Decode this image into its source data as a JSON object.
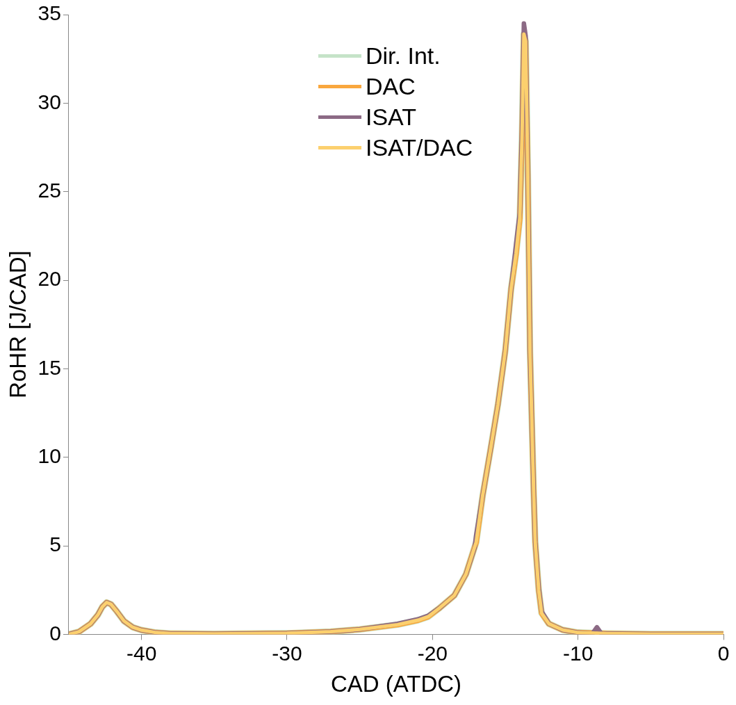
{
  "chart_data": {
    "type": "line",
    "xlabel": "CAD (ATDC)",
    "ylabel": "RoHR [J/CAD]",
    "xlim": [
      -45,
      0
    ],
    "xticks": [
      -40,
      -30,
      -20,
      -10,
      0
    ],
    "ylim": [
      0,
      35
    ],
    "yticks": [
      0,
      5,
      10,
      15,
      20,
      25,
      30,
      35
    ],
    "grid": false,
    "legend": "top",
    "marker": "none",
    "line_style": "solid",
    "series": [
      {
        "name": "Dir. Int.",
        "color": "#c5e3c8",
        "x": [
          -45,
          -44.3,
          -43.5,
          -43,
          -42.7,
          -42.4,
          -42.1,
          -41.7,
          -41.2,
          -40.6,
          -40,
          -39,
          -38,
          -35,
          -30,
          -27,
          -25,
          -22.4,
          -21,
          -20.3,
          -19.5,
          -18.5,
          -17.7,
          -17,
          -16.55,
          -16,
          -15.5,
          -15,
          -14.6,
          -14.26,
          -14,
          -13.85,
          -13.72,
          -13.6,
          -13.45,
          -13.3,
          -13.04,
          -12.94,
          -12.7,
          -12.5,
          -12,
          -11.05,
          -10,
          -8,
          -5,
          0
        ],
        "values": [
          0,
          0.15,
          0.6,
          1.1,
          1.55,
          1.8,
          1.7,
          1.3,
          0.75,
          0.4,
          0.24,
          0.1,
          0.05,
          0.03,
          0.06,
          0.15,
          0.28,
          0.55,
          0.8,
          1,
          1.5,
          2.2,
          3.4,
          5.2,
          7.85,
          10.5,
          13,
          16,
          19.5,
          21.5,
          23.5,
          28,
          33.9,
          33.5,
          26,
          16,
          7.85,
          5.2,
          2.5,
          1.2,
          0.6,
          0.25,
          0.1,
          0.05,
          0.02,
          0.02
        ]
      },
      {
        "name": "DAC",
        "color": "#f9a73e",
        "x": [
          -45,
          -44.3,
          -43.5,
          -43,
          -42.7,
          -42.4,
          -42.1,
          -41.7,
          -41.2,
          -40.6,
          -40,
          -39,
          -38,
          -35,
          -30,
          -27,
          -25,
          -22.4,
          -21,
          -20.3,
          -19.5,
          -18.5,
          -17.7,
          -17,
          -16.55,
          -16,
          -15.5,
          -15,
          -14.6,
          -14.26,
          -14,
          -13.85,
          -13.72,
          -13.6,
          -13.45,
          -13.3,
          -13.04,
          -12.94,
          -12.7,
          -12.5,
          -12,
          -11.05,
          -10,
          -8,
          -5,
          0
        ],
        "values": [
          0,
          0.15,
          0.6,
          1.1,
          1.55,
          1.8,
          1.7,
          1.3,
          0.75,
          0.4,
          0.24,
          0.1,
          0.05,
          0.03,
          0.06,
          0.15,
          0.28,
          0.55,
          0.8,
          1,
          1.5,
          2.2,
          3.4,
          5.2,
          7.85,
          10.5,
          13,
          16,
          19.5,
          21.5,
          23.5,
          28,
          33.9,
          33.5,
          26,
          16,
          7.85,
          5.2,
          2.5,
          1.2,
          0.6,
          0.25,
          0.1,
          0.05,
          0.02,
          0.02
        ]
      },
      {
        "name": "ISAT",
        "color": "#8c6a85",
        "x": [
          -45,
          -44.3,
          -43.5,
          -43,
          -42.7,
          -42.4,
          -42.1,
          -41.7,
          -41.2,
          -40.6,
          -40,
          -39,
          -38,
          -35,
          -30,
          -27,
          -25,
          -22.4,
          -21,
          -20.3,
          -19.5,
          -18.5,
          -17.7,
          -17.1,
          -17,
          -16.55,
          -16,
          -15.5,
          -15,
          -14.6,
          -14.26,
          -14,
          -13.85,
          -13.72,
          -13.6,
          -13.45,
          -13.3,
          -13.04,
          -12.94,
          -12.7,
          -12.5,
          -12,
          -11.05,
          -10,
          -9,
          -8.7,
          -8.4,
          -8,
          -5,
          0
        ],
        "values": [
          0,
          0.15,
          0.6,
          1.1,
          1.55,
          1.8,
          1.7,
          1.3,
          0.75,
          0.4,
          0.24,
          0.1,
          0.05,
          0.03,
          0.06,
          0.15,
          0.28,
          0.6,
          0.85,
          1.05,
          1.5,
          2.2,
          3.4,
          4.9,
          5.6,
          7.85,
          10.5,
          13,
          16,
          19.5,
          22,
          23.8,
          28.5,
          34.5,
          33.8,
          26,
          16,
          7.85,
          5.2,
          2.6,
          1.3,
          0.6,
          0.25,
          0.1,
          0.05,
          0.4,
          0.05,
          0.05,
          0.02,
          0.02
        ]
      },
      {
        "name": "ISAT/DAC",
        "color": "#fcd06e",
        "x": [
          -45,
          -44.3,
          -43.5,
          -43,
          -42.7,
          -42.4,
          -42.1,
          -41.7,
          -41.2,
          -40.6,
          -40,
          -39,
          -38,
          -35,
          -30,
          -27,
          -25,
          -22.4,
          -21,
          -20.3,
          -19.5,
          -18.5,
          -17.7,
          -17,
          -16.55,
          -16,
          -15.5,
          -15,
          -14.6,
          -14.26,
          -14,
          -13.85,
          -13.72,
          -13.6,
          -13.45,
          -13.3,
          -13.04,
          -12.94,
          -12.7,
          -12.5,
          -12,
          -11.05,
          -10,
          -8,
          -5,
          0
        ],
        "values": [
          0,
          0.15,
          0.6,
          1.1,
          1.55,
          1.8,
          1.7,
          1.3,
          0.75,
          0.4,
          0.24,
          0.1,
          0.05,
          0.03,
          0.06,
          0.15,
          0.28,
          0.55,
          0.8,
          1,
          1.5,
          2.2,
          3.4,
          5.2,
          7.85,
          10.5,
          13,
          16,
          19.5,
          21.5,
          23.5,
          28,
          33.9,
          33.5,
          26,
          16,
          7.85,
          5.2,
          2.5,
          1.2,
          0.6,
          0.25,
          0.1,
          0.05,
          0.02,
          0.02
        ]
      }
    ]
  }
}
